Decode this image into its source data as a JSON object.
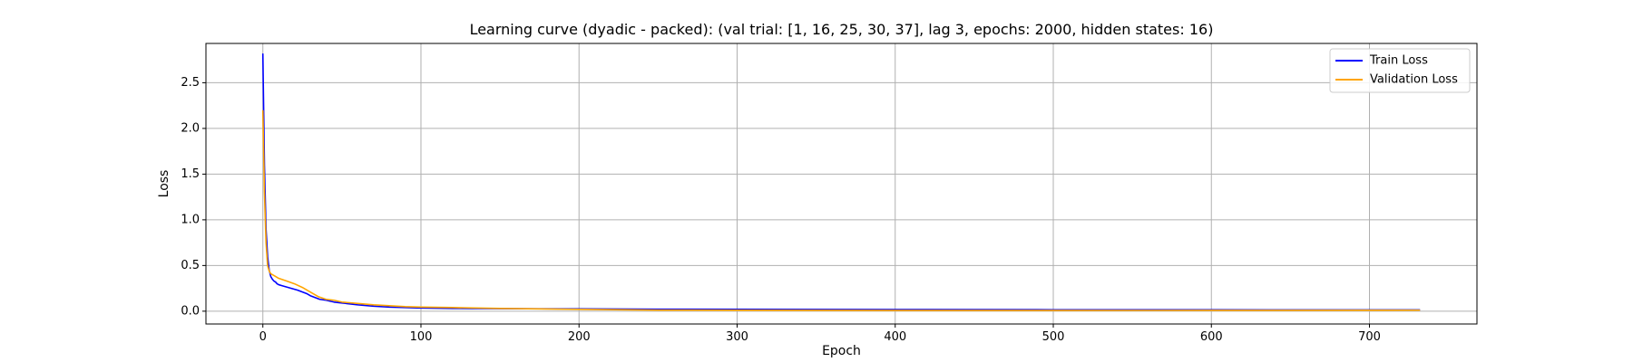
{
  "chart_data": {
    "type": "line",
    "title": "Learning curve (dyadic - packed): (val trial: [1, 16, 25, 30, 37], lag 3, epochs: 2000, hidden states: 16)",
    "xlabel": "Epoch",
    "ylabel": "Loss",
    "xlim": [
      -36,
      768
    ],
    "ylim": [
      -0.14,
      2.93
    ],
    "xticks": [
      0,
      100,
      200,
      300,
      400,
      500,
      600,
      700
    ],
    "yticks": [
      0.0,
      0.5,
      1.0,
      1.5,
      2.0,
      2.5
    ],
    "ytick_labels": [
      "0.0",
      "0.5",
      "1.0",
      "1.5",
      "2.0",
      "2.5"
    ],
    "grid": true,
    "legend_position": "top-right",
    "series": [
      {
        "name": "Train Loss",
        "color": "#0000ff",
        "x": [
          0,
          1,
          2,
          3,
          4,
          5,
          6,
          7,
          8,
          9,
          10,
          12,
          14,
          16,
          18,
          20,
          22,
          25,
          28,
          30,
          33,
          36,
          40,
          45,
          50,
          60,
          70,
          80,
          90,
          100,
          120,
          150,
          200,
          250,
          300,
          400,
          500,
          600,
          700,
          732
        ],
        "y": [
          2.82,
          1.6,
          0.9,
          0.6,
          0.45,
          0.38,
          0.35,
          0.33,
          0.32,
          0.3,
          0.29,
          0.28,
          0.27,
          0.26,
          0.25,
          0.24,
          0.23,
          0.21,
          0.19,
          0.17,
          0.15,
          0.13,
          0.12,
          0.1,
          0.09,
          0.07,
          0.055,
          0.045,
          0.04,
          0.035,
          0.03,
          0.028,
          0.025,
          0.022,
          0.02,
          0.018,
          0.016,
          0.015,
          0.014,
          0.014
        ]
      },
      {
        "name": "Validation Loss",
        "color": "#ffa500",
        "x": [
          0,
          1,
          2,
          3,
          4,
          5,
          6,
          7,
          8,
          10,
          15,
          20,
          25,
          30,
          35,
          40,
          45,
          50,
          60,
          70,
          80,
          90,
          100,
          120,
          150,
          200,
          250,
          300,
          400,
          500,
          600,
          700,
          732
        ],
        "y": [
          2.2,
          1.3,
          0.75,
          0.5,
          0.44,
          0.41,
          0.4,
          0.39,
          0.38,
          0.36,
          0.33,
          0.3,
          0.26,
          0.21,
          0.16,
          0.13,
          0.12,
          0.1,
          0.085,
          0.07,
          0.06,
          0.05,
          0.045,
          0.04,
          0.03,
          0.02,
          0.012,
          0.01,
          0.008,
          0.008,
          0.009,
          0.01,
          0.011
        ]
      }
    ]
  }
}
